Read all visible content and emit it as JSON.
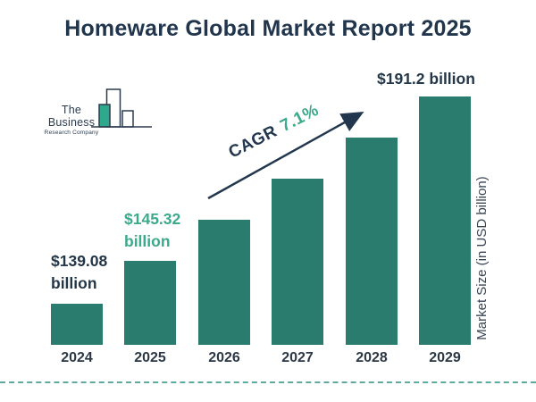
{
  "header": {
    "title": "Homeware Global Market Report 2025"
  },
  "logo": {
    "line1": "The Business",
    "line2": "Research Company"
  },
  "colors": {
    "navy": "#22374E",
    "bar_teal": "#2A7D6E",
    "green_accent": "#3BA98B",
    "dashed_line": "#5FA9A1"
  },
  "chart_data": {
    "type": "bar",
    "title": "Homeware Global Market Report 2025",
    "categories": [
      "2024",
      "2025",
      "2026",
      "2027",
      "2028",
      "2029"
    ],
    "values": [
      139.08,
      145.32,
      155.64,
      166.69,
      178.52,
      191.2
    ],
    "labeled_years": [
      "2024",
      "2025",
      "2029"
    ],
    "unit": "USD billion",
    "xlabel": "",
    "ylabel": "Market Size (in USD billion)",
    "grid": "off",
    "legend": "none",
    "bar_color": "#2A7D6E",
    "annotations": {
      "cagr_prefix": "CAGR",
      "cagr_value": "7.1%",
      "value_labels": {
        "2024": {
          "line1": "$139.08",
          "line2": "billion"
        },
        "2025": {
          "line1": "$145.32",
          "line2": "billion"
        },
        "2029": {
          "line1": "$191.2 billion"
        }
      }
    }
  }
}
